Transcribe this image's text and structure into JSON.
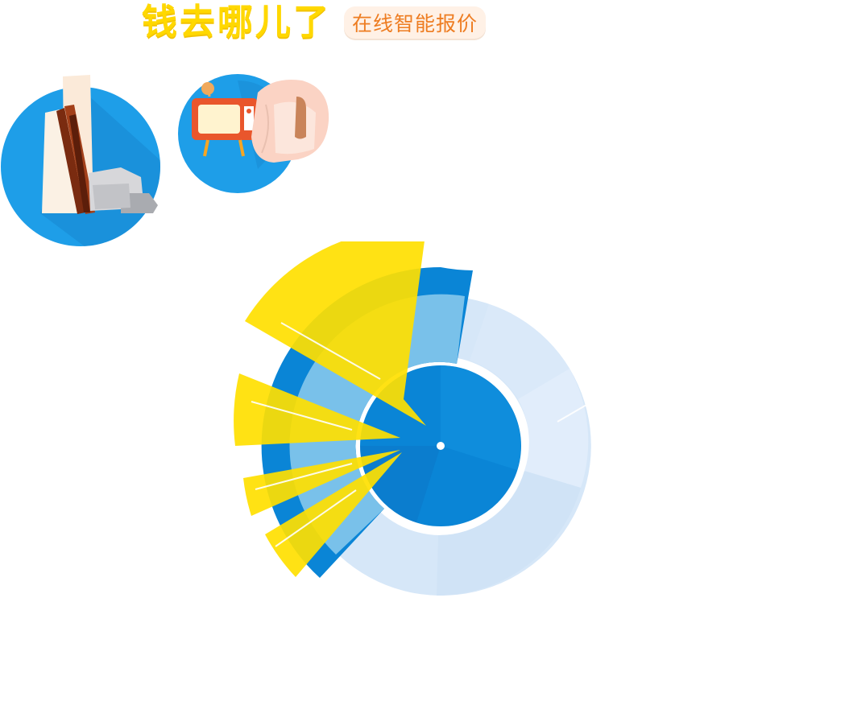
{
  "header": {
    "title": "钱去哪儿了",
    "subtitle": "在线智能报价"
  },
  "icons": [
    {
      "name": "building-materials-icon",
      "color": "#1a9be6"
    },
    {
      "name": "tv-sofa-icon",
      "color": "#1a9be6"
    }
  ],
  "colors": {
    "yellow": "#ffe000",
    "blue_dark": "#0a7fd4",
    "blue_mid": "#79c1ea",
    "blue_light": "#d6e7f8",
    "white": "#ffffff"
  }
}
